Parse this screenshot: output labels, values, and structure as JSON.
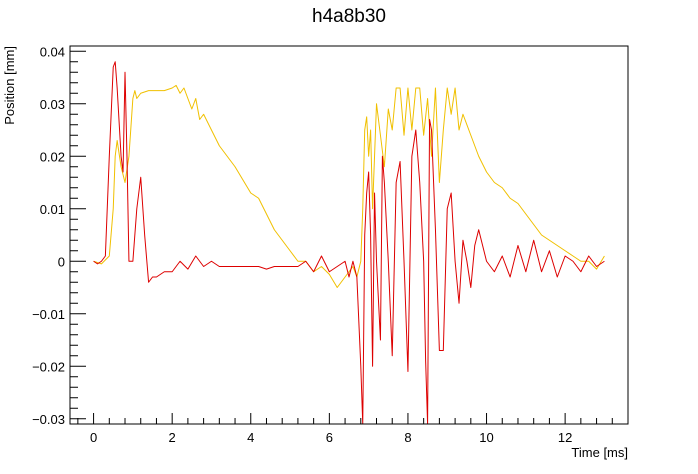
{
  "chart_data": {
    "type": "line",
    "title": "h4a8b30",
    "xlabel": "Time [ms]",
    "ylabel": "Position [mm]",
    "xlim": [
      -0.6,
      13.6
    ],
    "ylim": [
      -0.031,
      0.041
    ],
    "x_major_ticks": [
      0,
      2,
      4,
      6,
      8,
      10,
      12
    ],
    "y_major_ticks": [
      -0.03,
      -0.02,
      -0.01,
      0,
      0.01,
      0.02,
      0.03,
      0.04
    ],
    "y_tick_labels": [
      "−0.03",
      "−0.02",
      "−0.01",
      "0",
      "0.01",
      "0.02",
      "0.03",
      "0.04"
    ],
    "grid": false,
    "legend": false,
    "series": [
      {
        "color": "#f0c000",
        "x": [
          0.0,
          0.2,
          0.4,
          0.5,
          0.55,
          0.6,
          0.7,
          0.8,
          0.9,
          1.0,
          1.05,
          1.1,
          1.2,
          1.4,
          1.6,
          1.8,
          2.0,
          2.1,
          2.2,
          2.3,
          2.4,
          2.5,
          2.6,
          2.7,
          2.8,
          3.0,
          3.2,
          3.4,
          3.6,
          3.8,
          4.0,
          4.2,
          4.4,
          4.6,
          4.8,
          5.0,
          5.2,
          5.4,
          5.6,
          5.8,
          6.0,
          6.2,
          6.4,
          6.6,
          6.7,
          6.8,
          6.85,
          6.9,
          6.95,
          7.0,
          7.05,
          7.1,
          7.15,
          7.2,
          7.3,
          7.4,
          7.5,
          7.6,
          7.7,
          7.8,
          7.9,
          8.0,
          8.1,
          8.2,
          8.3,
          8.4,
          8.5,
          8.6,
          8.7,
          8.8,
          8.9,
          9.0,
          9.1,
          9.2,
          9.3,
          9.4,
          9.6,
          9.8,
          10.0,
          10.2,
          10.4,
          10.6,
          10.8,
          11.0,
          11.2,
          11.4,
          11.6,
          11.8,
          12.0,
          12.2,
          12.4,
          12.6,
          12.8,
          13.0
        ],
        "y": [
          0.0,
          -0.0005,
          0.001,
          0.01,
          0.02,
          0.023,
          0.018,
          0.015,
          0.02,
          0.031,
          0.0325,
          0.031,
          0.032,
          0.0325,
          0.0325,
          0.0325,
          0.033,
          0.0335,
          0.032,
          0.033,
          0.031,
          0.029,
          0.031,
          0.027,
          0.028,
          0.025,
          0.022,
          0.02,
          0.018,
          0.0155,
          0.013,
          0.012,
          0.009,
          0.006,
          0.004,
          0.002,
          0.0,
          0.0,
          -0.002,
          -0.001,
          -0.0025,
          -0.005,
          -0.003,
          -0.001,
          -0.003,
          0.0,
          0.01,
          0.025,
          0.0275,
          0.02,
          0.025,
          0.01,
          0.02,
          0.03,
          0.024,
          0.018,
          0.029,
          0.025,
          0.033,
          0.033,
          0.024,
          0.033,
          0.025,
          0.033,
          0.033,
          0.024,
          0.031,
          0.02,
          0.033,
          0.015,
          0.025,
          0.033,
          0.028,
          0.033,
          0.025,
          0.028,
          0.024,
          0.02,
          0.017,
          0.015,
          0.014,
          0.012,
          0.011,
          0.009,
          0.007,
          0.005,
          0.004,
          0.003,
          0.002,
          0.001,
          0.0,
          0.0,
          -0.0015,
          0.001
        ]
      },
      {
        "color": "#dd0000",
        "x": [
          0.0,
          0.1,
          0.2,
          0.3,
          0.4,
          0.5,
          0.55,
          0.6,
          0.7,
          0.75,
          0.8,
          0.85,
          0.9,
          1.0,
          1.1,
          1.2,
          1.3,
          1.4,
          1.5,
          1.6,
          1.8,
          2.0,
          2.2,
          2.4,
          2.6,
          2.8,
          3.0,
          3.2,
          3.4,
          3.6,
          3.8,
          4.0,
          4.2,
          4.4,
          4.6,
          4.8,
          5.0,
          5.2,
          5.4,
          5.6,
          5.8,
          6.0,
          6.2,
          6.4,
          6.5,
          6.6,
          6.7,
          6.8,
          6.85,
          6.9,
          6.95,
          7.0,
          7.05,
          7.1,
          7.15,
          7.2,
          7.3,
          7.35,
          7.4,
          7.5,
          7.6,
          7.7,
          7.8,
          7.9,
          8.0,
          8.1,
          8.2,
          8.3,
          8.4,
          8.45,
          8.5,
          8.55,
          8.6,
          8.7,
          8.8,
          8.9,
          9.0,
          9.1,
          9.2,
          9.3,
          9.4,
          9.5,
          9.6,
          9.7,
          9.8,
          10.0,
          10.2,
          10.4,
          10.6,
          10.8,
          11.0,
          11.2,
          11.4,
          11.6,
          11.8,
          12.0,
          12.2,
          12.4,
          12.6,
          12.8,
          13.0
        ],
        "y": [
          0.0,
          -0.0005,
          0.0,
          0.001,
          0.02,
          0.037,
          0.038,
          0.033,
          0.02,
          0.017,
          0.036,
          0.02,
          0.0,
          0.0,
          0.01,
          0.016,
          0.005,
          -0.004,
          -0.003,
          -0.003,
          -0.002,
          -0.002,
          0.0,
          -0.0015,
          0.001,
          -0.001,
          0.0,
          -0.001,
          -0.001,
          -0.001,
          -0.001,
          -0.001,
          -0.001,
          -0.0015,
          -0.001,
          -0.001,
          -0.001,
          -0.001,
          0.0,
          -0.002,
          0.001,
          -0.002,
          -0.001,
          0.0,
          -0.003,
          0.0,
          -0.003,
          -0.02,
          -0.031,
          0.005,
          0.013,
          0.017,
          0.005,
          -0.02,
          0.013,
          0.0,
          -0.015,
          0.02,
          0.015,
          0.0,
          -0.018,
          0.015,
          0.019,
          0.0,
          -0.021,
          0.02,
          0.025,
          0.015,
          0.0,
          -0.019,
          -0.031,
          0.027,
          0.025,
          0.006,
          -0.017,
          -0.017,
          0.01,
          0.013,
          0.0,
          -0.008,
          0.004,
          0.0,
          -0.005,
          0.003,
          0.006,
          0.0,
          -0.002,
          0.001,
          -0.003,
          0.003,
          -0.002,
          0.004,
          -0.002,
          0.002,
          -0.003,
          0.001,
          0.0,
          -0.002,
          0.001,
          -0.001,
          0.0
        ]
      }
    ]
  }
}
